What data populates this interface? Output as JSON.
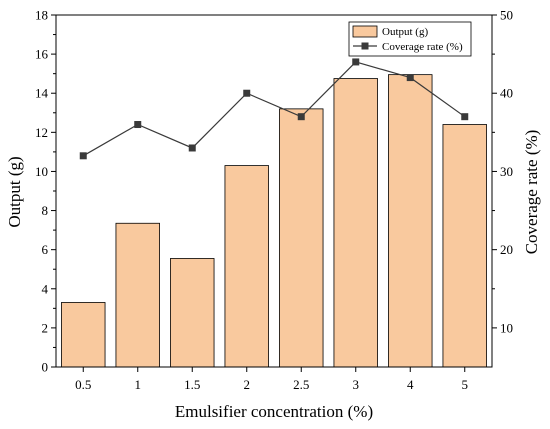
{
  "chart_data": {
    "type": "bar+line",
    "categories": [
      "0.5",
      "1",
      "1.5",
      "2",
      "2.5",
      "3",
      "4",
      "5"
    ],
    "series": [
      {
        "name": "Output (g)",
        "type": "bar",
        "axis": "left",
        "color": "#F9C99E",
        "values": [
          3.3,
          7.35,
          5.55,
          10.3,
          13.2,
          14.75,
          14.95,
          12.4
        ]
      },
      {
        "name": "Coverage rate (%)",
        "type": "line",
        "axis": "right",
        "color": "#3A3A3A",
        "values": [
          32,
          36,
          33,
          40,
          37,
          44,
          42,
          37
        ]
      }
    ],
    "xlabel": "Emulsifier concentration  (%)",
    "ylabel_left": "Output (g)",
    "ylabel_right": "Coverage rate (%)",
    "ylim_left": [
      0,
      18
    ],
    "yticks_left": [
      "0",
      "2",
      "4",
      "6",
      "8",
      "10",
      "12",
      "14",
      "16",
      "18"
    ],
    "ylim_right": [
      5,
      50
    ],
    "yticks_right": [
      "10",
      "20",
      "30",
      "40",
      "50"
    ],
    "grid": false,
    "legend_position": "top-right"
  }
}
